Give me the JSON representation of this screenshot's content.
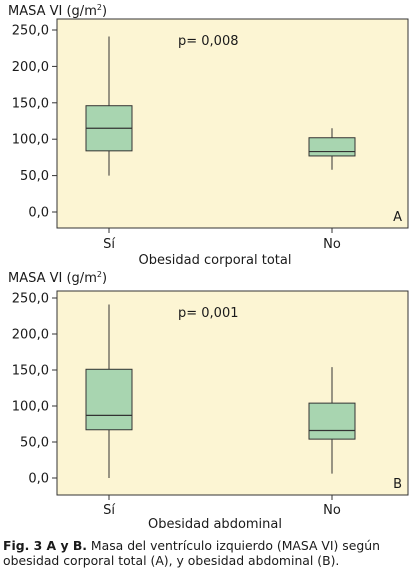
{
  "chart_data": [
    {
      "type": "box",
      "panel_letter": "A",
      "ylabel": "MASA VI (g/m",
      "ylabel_sup": "2",
      "ylabel_close": ")",
      "xlabel": "Obesidad corporal total",
      "annotation": "p= 0,008",
      "ylim": [
        -30,
        255
      ],
      "yticks": [
        0,
        50,
        100,
        150,
        200,
        250
      ],
      "ytick_labels": [
        "0,0",
        "50,0",
        "100,0",
        "150,0",
        "200,0",
        "250,0"
      ],
      "categories": [
        "Sí",
        "No"
      ],
      "boxes": [
        {
          "min": 50,
          "q1": 84,
          "median": 115,
          "q3": 146,
          "max": 241
        },
        {
          "min": 58,
          "q1": 77,
          "median": 83,
          "q3": 102,
          "max": 115
        }
      ],
      "grid": false,
      "box_color": "#a8d5b0",
      "background_color": "#fcf5d3"
    },
    {
      "type": "box",
      "panel_letter": "B",
      "ylabel": "MASA VI (g/m",
      "ylabel_sup": "2",
      "ylabel_close": ")",
      "xlabel": "Obesidad abdominal",
      "annotation": "p= 0,001",
      "ylim": [
        -25,
        255
      ],
      "yticks": [
        0,
        50,
        100,
        150,
        200,
        250
      ],
      "ytick_labels": [
        "0,0",
        "50,0",
        "100,0",
        "150,0",
        "200,0",
        "250,0"
      ],
      "categories": [
        "Sí",
        "No"
      ],
      "boxes": [
        {
          "min": 0,
          "q1": 67,
          "median": 87,
          "q3": 151,
          "max": 241
        },
        {
          "min": 6,
          "q1": 54,
          "median": 66,
          "q3": 104,
          "max": 154
        }
      ],
      "grid": false,
      "box_color": "#a8d5b0",
      "background_color": "#fcf5d3"
    }
  ],
  "caption": {
    "bold": "Fig. 3 A y B.",
    "text": " Masa del ventrículo izquierdo (MASA VI) según obesidad corporal total (A), y obesidad abdominal (B)."
  }
}
